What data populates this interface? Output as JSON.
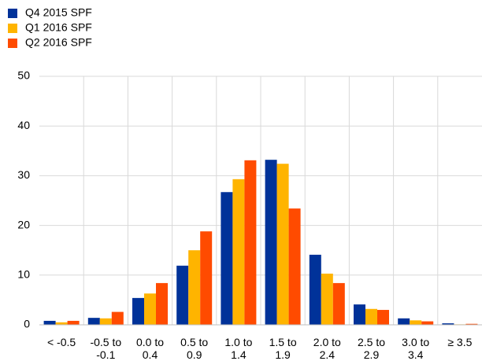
{
  "chart_data": {
    "type": "bar",
    "categories": [
      "< -0.5",
      "-0.5 to -0.1",
      "0.0 to 0.4",
      "0.5 to 0.9",
      "1.0 to 1.4",
      "1.5 to 1.9",
      "2.0 to 2.4",
      "2.5 to 2.9",
      "3.0 to 3.4",
      "≥ 3.5"
    ],
    "series": [
      {
        "name": "Q4 2015 SPF",
        "color": "#003299",
        "values": [
          0.8,
          1.4,
          5.4,
          11.9,
          26.7,
          33.2,
          14.1,
          4.1,
          1.3,
          0.3
        ]
      },
      {
        "name": "Q1 2016 SPF",
        "color": "#ffb400",
        "values": [
          0.5,
          1.3,
          6.3,
          15.0,
          29.3,
          32.4,
          10.3,
          3.2,
          0.9,
          0.1
        ]
      },
      {
        "name": "Q2 2016 SPF",
        "color": "#ff4b00",
        "values": [
          0.8,
          2.6,
          8.4,
          18.8,
          33.1,
          23.4,
          8.4,
          3.0,
          0.7,
          0.2
        ]
      }
    ],
    "ylim": [
      0,
      50
    ],
    "yticks": [
      0,
      10,
      20,
      30,
      40,
      50
    ],
    "grid": true,
    "legend": "top-left"
  }
}
